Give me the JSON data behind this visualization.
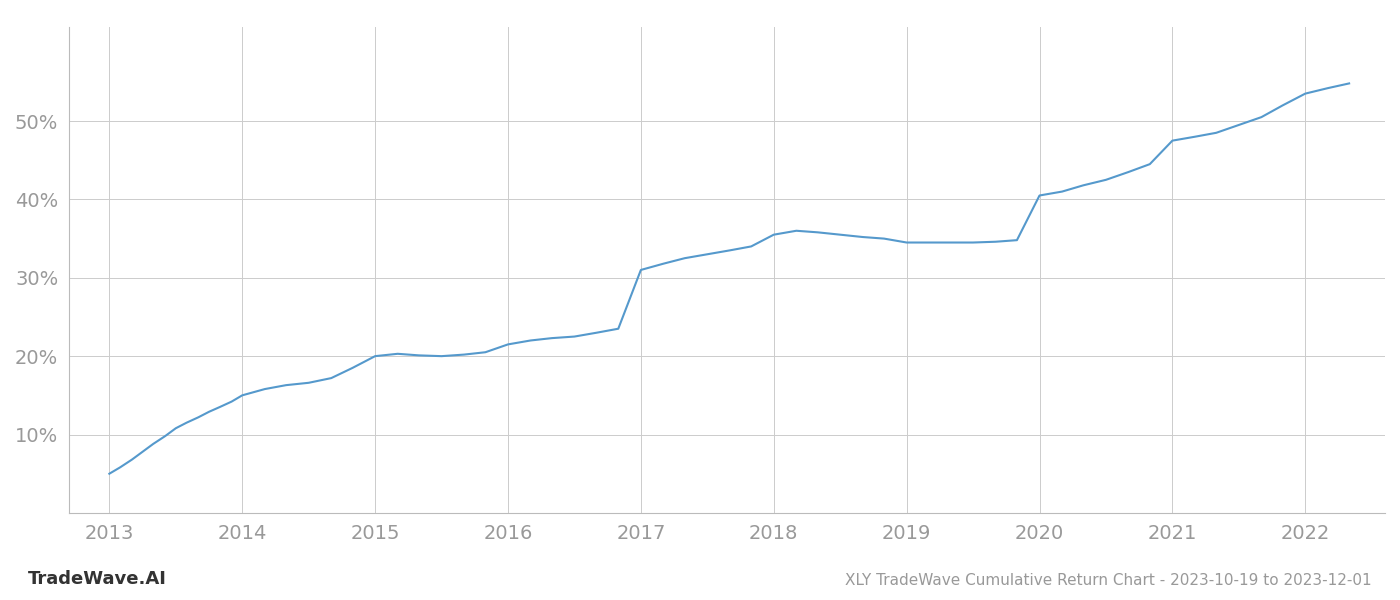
{
  "title": "XLY TradeWave Cumulative Return Chart - 2023-10-19 to 2023-12-01",
  "watermark": "TradeWave.AI",
  "line_color": "#5599cc",
  "background_color": "#ffffff",
  "grid_color": "#cccccc",
  "x_values": [
    2013.0,
    2013.08,
    2013.17,
    2013.25,
    2013.33,
    2013.42,
    2013.5,
    2013.58,
    2013.67,
    2013.75,
    2013.83,
    2013.92,
    2014.0,
    2014.17,
    2014.33,
    2014.5,
    2014.67,
    2014.83,
    2015.0,
    2015.17,
    2015.33,
    2015.5,
    2015.67,
    2015.83,
    2016.0,
    2016.17,
    2016.33,
    2016.5,
    2016.67,
    2016.83,
    2017.0,
    2017.17,
    2017.33,
    2017.5,
    2017.67,
    2017.83,
    2018.0,
    2018.17,
    2018.33,
    2018.5,
    2018.67,
    2018.83,
    2019.0,
    2019.17,
    2019.33,
    2019.5,
    2019.67,
    2019.83,
    2020.0,
    2020.17,
    2020.33,
    2020.5,
    2020.67,
    2020.83,
    2021.0,
    2021.17,
    2021.33,
    2021.5,
    2021.67,
    2021.83,
    2022.0,
    2022.17,
    2022.33
  ],
  "y_values": [
    5.0,
    5.8,
    6.8,
    7.8,
    8.8,
    9.8,
    10.8,
    11.5,
    12.2,
    12.9,
    13.5,
    14.2,
    15.0,
    15.8,
    16.3,
    16.6,
    17.2,
    18.5,
    20.0,
    20.3,
    20.1,
    20.0,
    20.2,
    20.5,
    21.5,
    22.0,
    22.3,
    22.5,
    23.0,
    23.5,
    31.0,
    31.8,
    32.5,
    33.0,
    33.5,
    34.0,
    35.5,
    36.0,
    35.8,
    35.5,
    35.2,
    35.0,
    34.5,
    34.5,
    34.5,
    34.5,
    34.6,
    34.8,
    40.5,
    41.0,
    41.8,
    42.5,
    43.5,
    44.5,
    47.5,
    48.0,
    48.5,
    49.5,
    50.5,
    52.0,
    53.5,
    54.2,
    54.8
  ],
  "xlim": [
    2012.7,
    2022.6
  ],
  "ylim": [
    0,
    62
  ],
  "yticks": [
    10,
    20,
    30,
    40,
    50
  ],
  "xticks": [
    2013,
    2014,
    2015,
    2016,
    2017,
    2018,
    2019,
    2020,
    2021,
    2022
  ],
  "tick_label_color": "#999999",
  "tick_fontsize": 14,
  "title_fontsize": 11,
  "watermark_fontsize": 13,
  "line_width": 1.5
}
